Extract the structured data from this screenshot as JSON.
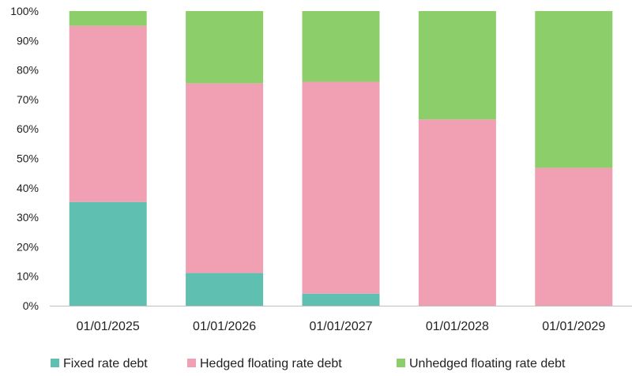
{
  "chart_data": {
    "type": "bar",
    "stacked": true,
    "percent_stacked": true,
    "categories": [
      "01/01/2025",
      "01/01/2026",
      "01/01/2027",
      "01/01/2028",
      "01/01/2029"
    ],
    "series": [
      {
        "name": "Fixed rate debt",
        "color": "#5fc0b2",
        "values": [
          35.2,
          11.1,
          4.1,
          0.0,
          0.0
        ]
      },
      {
        "name": "Hedged floating rate debt",
        "color": "#f0a0b2",
        "values": [
          59.8,
          64.4,
          71.9,
          63.2,
          46.8
        ]
      },
      {
        "name": "Unhedged floating rate debt",
        "color": "#8ccf6a",
        "values": [
          5.0,
          24.5,
          24.0,
          36.8,
          53.2
        ]
      }
    ],
    "y_ticks": [
      "0%",
      "10%",
      "20%",
      "30%",
      "40%",
      "50%",
      "60%",
      "70%",
      "80%",
      "90%",
      "100%"
    ],
    "ylim": [
      0,
      100
    ],
    "grid": false,
    "legend_position": "bottom",
    "title": "",
    "xlabel": "",
    "ylabel": ""
  }
}
